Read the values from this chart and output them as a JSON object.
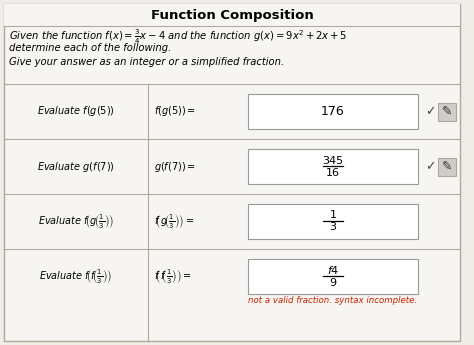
{
  "title": "Function Composition",
  "header_line1": "Given the function $f(x) = \\frac{3}{4}x - 4$ and the function $g(x) = 9x^2 + 2x + 5$",
  "header_line2": "determine each of the following.",
  "instruction": "Give your answer as an integer or a simplified fraction.",
  "rows": [
    {
      "left_label": "Evaluate $f(g(5))$",
      "equation": "$f(g(5)) =$",
      "answer": "176",
      "answer_type": "integer",
      "has_check": true
    },
    {
      "left_label": "Evaluate $g(f(7))$",
      "equation": "$g(f(7)) =$",
      "answer_num": "345",
      "answer_den": "16",
      "answer_type": "fraction",
      "has_check": true
    },
    {
      "left_label": "Evaluate $f\\!\\left(g\\!\\left(\\frac{1}{3}\\right)\\right)$",
      "equation": "$f\\!\\left(g\\!\\left(\\frac{1}{3}\\right)\\right) =$",
      "answer_num": "1",
      "answer_den": "3",
      "answer_type": "fraction",
      "has_check": false
    },
    {
      "left_label": "Evaluate $f\\!\\left(f\\!\\left(\\frac{1}{3}\\right)\\right)$",
      "equation": "$f\\!\\left(f\\!\\left(\\frac{1}{3}\\right)\\right) =$",
      "answer_num": "$f$4",
      "answer_den": "9",
      "answer_type": "fraction",
      "has_check": false,
      "error_msg": "not a valid fraction. syntax incomplete."
    }
  ],
  "bg_color": "#f0ede8",
  "table_bg": "#f7f5f2",
  "border_color": "#b0a898",
  "check_color": "#444444",
  "error_color": "#cc2200",
  "answer_box_bg": "#ffffff",
  "answer_box_border": "#999999",
  "title_fontsize": 9.5,
  "header_fontsize": 7.2,
  "label_fontsize": 7.0,
  "answer_fontsize": 8.0
}
